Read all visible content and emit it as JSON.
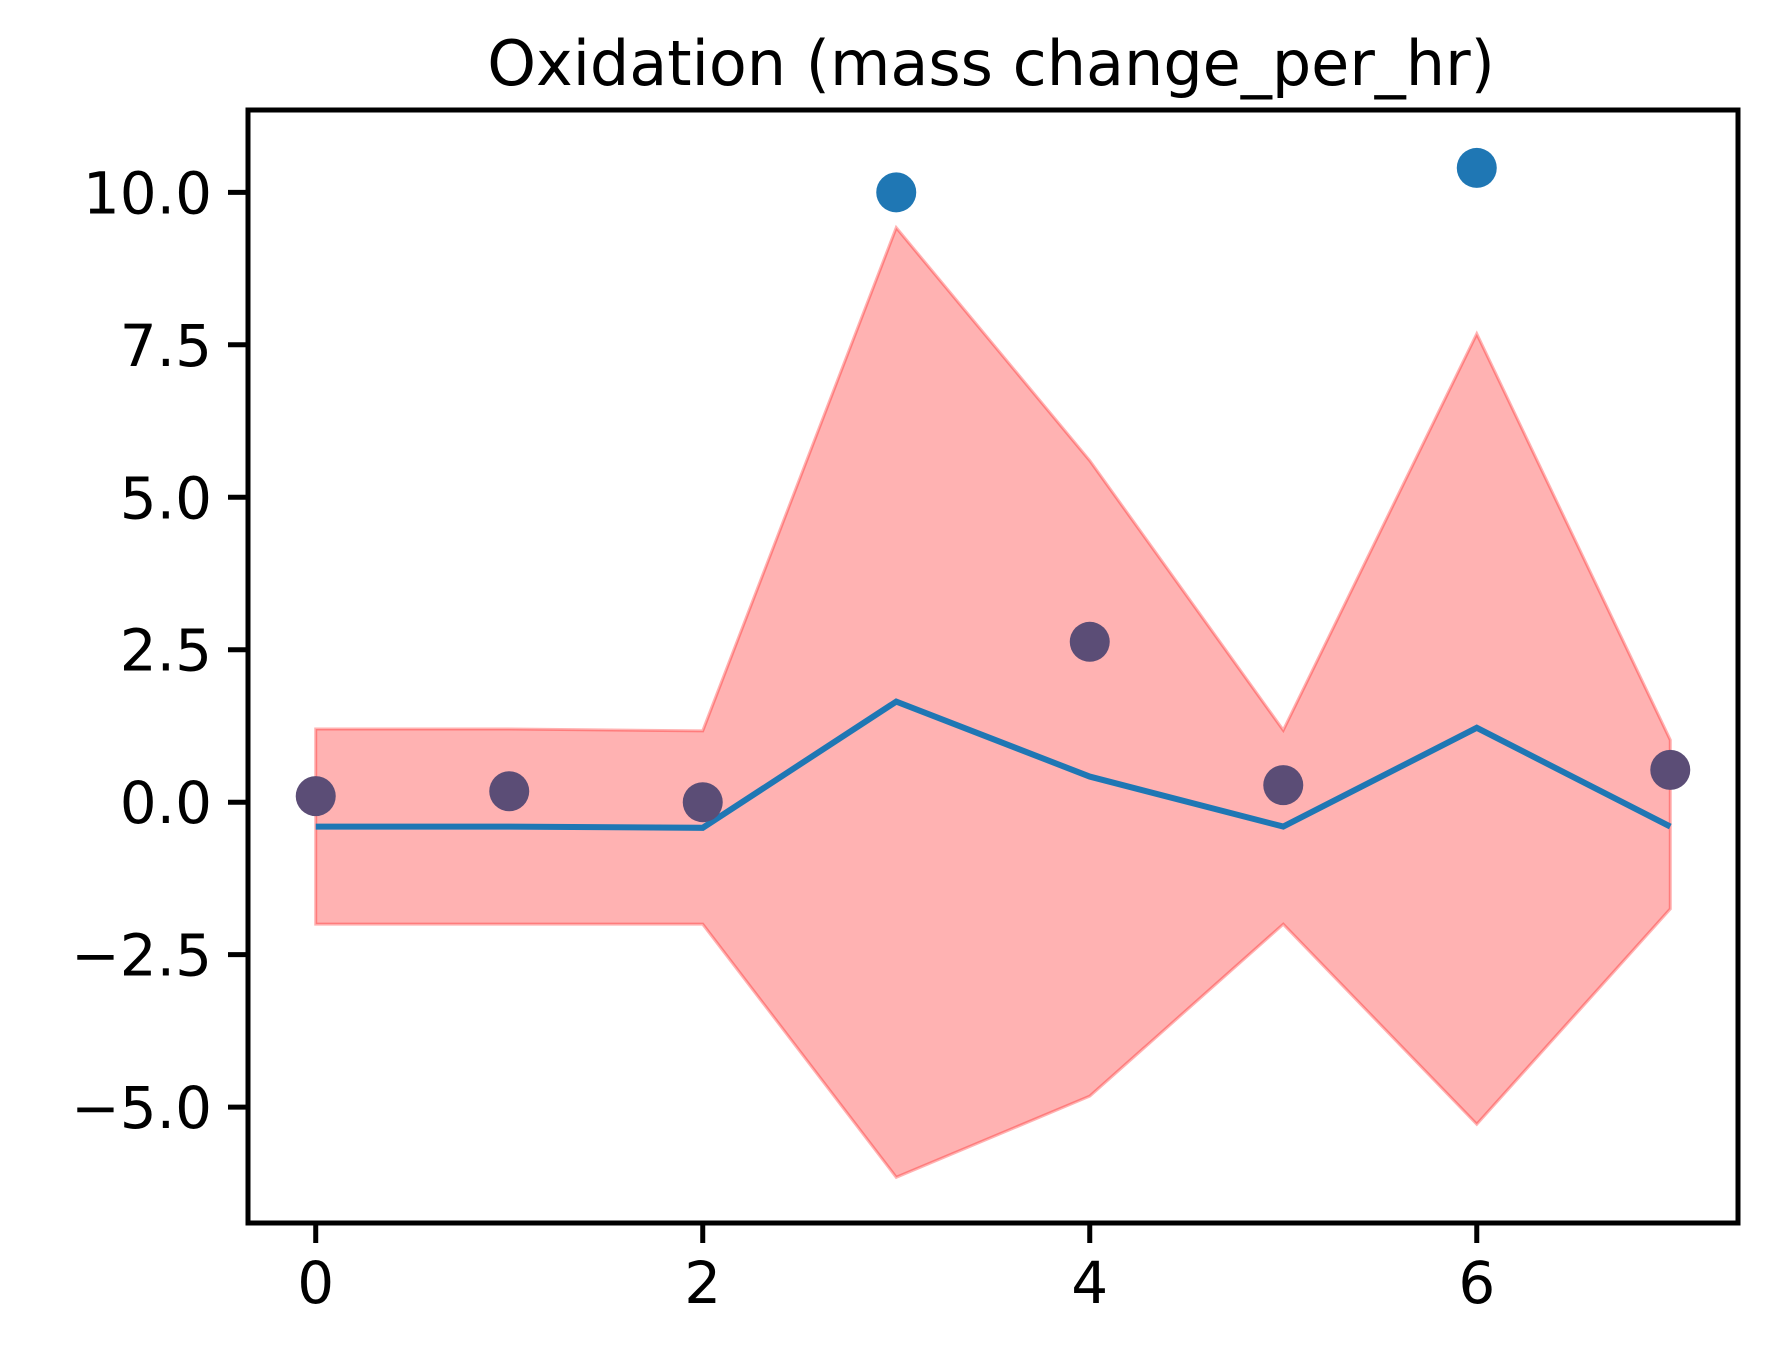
{
  "chart_data": {
    "type": "line",
    "title": "Oxidation (mass change_per_hr)",
    "xlabel": "",
    "ylabel": "",
    "xlim": [
      -0.35,
      7.35
    ],
    "ylim": [
      -6.9,
      11.35
    ],
    "grid": false,
    "legend": "none",
    "x_ticks": [
      0,
      2,
      4,
      6
    ],
    "x_tick_labels": [
      "0",
      "2",
      "4",
      "6"
    ],
    "y_ticks": [
      -5.0,
      -2.5,
      0.0,
      2.5,
      5.0,
      7.5,
      10.0
    ],
    "y_tick_labels": [
      "−5.0",
      "−2.5",
      "0.0",
      "2.5",
      "5.0",
      "7.5",
      "10.0"
    ],
    "colors": {
      "line": "#1f77b4",
      "band_fill": "#ff0000",
      "band_edge": "#ff0000",
      "observed": "#1f77b4",
      "inside_band": "#5b4d76"
    },
    "series": [
      {
        "kind": "line",
        "x": [
          0,
          1,
          2,
          3,
          4,
          5,
          6,
          7
        ],
        "values": [
          -0.4,
          -0.4,
          -0.42,
          1.65,
          0.42,
          -0.4,
          1.22,
          -0.4
        ]
      },
      {
        "kind": "band",
        "x": [
          0,
          1,
          2,
          3,
          4,
          5,
          6,
          7
        ],
        "upper": [
          1.2,
          1.2,
          1.17,
          9.42,
          5.6,
          1.18,
          7.68,
          1.02
        ],
        "lower": [
          -2.0,
          -2.0,
          -2.0,
          -6.15,
          -4.82,
          -2.0,
          -5.28,
          -1.75
        ]
      },
      {
        "kind": "scatter",
        "x": [
          0,
          1,
          2,
          3,
          4,
          5,
          6,
          7
        ],
        "values": [
          0.1,
          0.18,
          0.0,
          10.0,
          2.63,
          0.28,
          10.4,
          0.53
        ]
      }
    ]
  }
}
